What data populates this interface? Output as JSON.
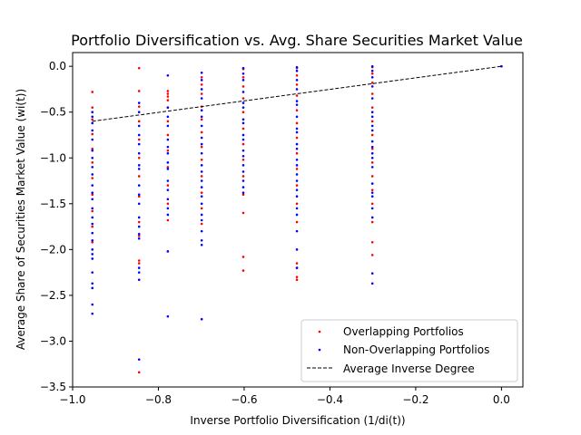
{
  "chart_data": {
    "type": "scatter",
    "title": "Portfolio Diversification vs. Avg. Share Securities Market Value",
    "xlabel": "Inverse Portfolio Diversification (1/di(t))",
    "ylabel": "Average Share of Securities Market Value (wi(t))",
    "xlim": [
      -1.0,
      0.05
    ],
    "ylim": [
      -3.5,
      0.15
    ],
    "xticks": [
      -1.0,
      -0.8,
      -0.6,
      -0.4,
      -0.2,
      0.0
    ],
    "xtick_labels": [
      "−1.0",
      "−0.8",
      "−0.6",
      "−0.4",
      "−0.2",
      "0.0"
    ],
    "yticks": [
      0.0,
      -0.5,
      -1.0,
      -1.5,
      -2.0,
      -2.5,
      -3.0,
      -3.5
    ],
    "ytick_labels": [
      "0.0",
      "−0.5",
      "−1.0",
      "−1.5",
      "−2.0",
      "−2.5",
      "−3.0",
      "−3.5"
    ],
    "grid": false,
    "legend_position": "bottom-right",
    "colors": {
      "overlapping": "#ff0000",
      "non_overlapping": "#0000ff",
      "average_line": "#000000"
    },
    "series": [
      {
        "name": "Overlapping Portfolios",
        "kind": "scatter",
        "color": "#ff0000",
        "points": [
          [
            -0.954,
            -0.28
          ],
          [
            -0.954,
            -0.45
          ],
          [
            -0.954,
            -0.58
          ],
          [
            -0.954,
            -0.74
          ],
          [
            -0.954,
            -0.9
          ],
          [
            -0.954,
            -1.05
          ],
          [
            -0.954,
            -1.22
          ],
          [
            -0.954,
            -1.4
          ],
          [
            -0.954,
            -1.58
          ],
          [
            -0.954,
            -1.75
          ],
          [
            -0.954,
            -1.92
          ],
          [
            -0.845,
            -0.02
          ],
          [
            -0.845,
            -0.27
          ],
          [
            -0.845,
            -0.44
          ],
          [
            -0.845,
            -0.6
          ],
          [
            -0.845,
            -0.8
          ],
          [
            -0.845,
            -1.0
          ],
          [
            -0.845,
            -1.2
          ],
          [
            -0.845,
            -1.42
          ],
          [
            -0.845,
            -1.7
          ],
          [
            -0.845,
            -1.85
          ],
          [
            -0.845,
            -2.12
          ],
          [
            -0.845,
            -2.15
          ],
          [
            -0.845,
            -3.34
          ],
          [
            -0.778,
            -0.27
          ],
          [
            -0.778,
            -0.3
          ],
          [
            -0.778,
            -0.33
          ],
          [
            -0.778,
            -0.37
          ],
          [
            -0.778,
            -0.45
          ],
          [
            -0.778,
            -0.6
          ],
          [
            -0.778,
            -0.75
          ],
          [
            -0.778,
            -0.92
          ],
          [
            -0.778,
            -1.1
          ],
          [
            -0.778,
            -1.3
          ],
          [
            -0.778,
            -1.5
          ],
          [
            -0.778,
            -1.68
          ],
          [
            -0.778,
            -2.02
          ],
          [
            -0.699,
            -0.12
          ],
          [
            -0.699,
            -0.2
          ],
          [
            -0.699,
            -0.3
          ],
          [
            -0.699,
            -0.44
          ],
          [
            -0.699,
            -0.58
          ],
          [
            -0.699,
            -0.72
          ],
          [
            -0.699,
            -0.88
          ],
          [
            -0.699,
            -1.02
          ],
          [
            -0.699,
            -1.2
          ],
          [
            -0.699,
            -1.38
          ],
          [
            -0.699,
            -1.55
          ],
          [
            -0.699,
            -1.72
          ],
          [
            -0.602,
            -0.03
          ],
          [
            -0.602,
            -0.12
          ],
          [
            -0.602,
            -0.22
          ],
          [
            -0.602,
            -0.35
          ],
          [
            -0.602,
            -0.5
          ],
          [
            -0.602,
            -0.68
          ],
          [
            -0.602,
            -0.85
          ],
          [
            -0.602,
            -1.02
          ],
          [
            -0.602,
            -1.2
          ],
          [
            -0.602,
            -1.4
          ],
          [
            -0.602,
            -1.6
          ],
          [
            -0.602,
            -2.08
          ],
          [
            -0.602,
            -2.23
          ],
          [
            -0.477,
            -0.02
          ],
          [
            -0.477,
            -0.1
          ],
          [
            -0.477,
            -0.2
          ],
          [
            -0.477,
            -0.32
          ],
          [
            -0.477,
            -0.48
          ],
          [
            -0.477,
            -0.62
          ],
          [
            -0.477,
            -0.78
          ],
          [
            -0.477,
            -0.95
          ],
          [
            -0.477,
            -1.12
          ],
          [
            -0.477,
            -1.3
          ],
          [
            -0.477,
            -1.5
          ],
          [
            -0.477,
            -1.7
          ],
          [
            -0.477,
            -2.15
          ],
          [
            -0.477,
            -2.2
          ],
          [
            -0.477,
            -2.3
          ],
          [
            -0.477,
            -2.33
          ],
          [
            -0.301,
            -0.01
          ],
          [
            -0.301,
            -0.08
          ],
          [
            -0.301,
            -0.18
          ],
          [
            -0.301,
            -0.3
          ],
          [
            -0.301,
            -0.45
          ],
          [
            -0.301,
            -0.6
          ],
          [
            -0.301,
            -0.75
          ],
          [
            -0.301,
            -0.9
          ],
          [
            -0.301,
            -1.05
          ],
          [
            -0.301,
            -1.2
          ],
          [
            -0.301,
            -1.35
          ],
          [
            -0.301,
            -1.5
          ],
          [
            -0.301,
            -1.7
          ],
          [
            -0.301,
            -1.92
          ],
          [
            -0.301,
            -2.06
          ],
          [
            0.0,
            0.0
          ]
        ]
      },
      {
        "name": "Non-Overlapping Portfolios",
        "kind": "scatter",
        "color": "#0000ff",
        "points": [
          [
            -0.954,
            -0.5
          ],
          [
            -0.954,
            -0.55
          ],
          [
            -0.954,
            -0.62
          ],
          [
            -0.954,
            -0.7
          ],
          [
            -0.954,
            -0.8
          ],
          [
            -0.954,
            -0.92
          ],
          [
            -0.954,
            -1.0
          ],
          [
            -0.954,
            -1.1
          ],
          [
            -0.954,
            -1.18
          ],
          [
            -0.954,
            -1.3
          ],
          [
            -0.954,
            -1.38
          ],
          [
            -0.954,
            -1.45
          ],
          [
            -0.954,
            -1.55
          ],
          [
            -0.954,
            -1.65
          ],
          [
            -0.954,
            -1.72
          ],
          [
            -0.954,
            -1.82
          ],
          [
            -0.954,
            -1.9
          ],
          [
            -0.954,
            -2.0
          ],
          [
            -0.954,
            -2.05
          ],
          [
            -0.954,
            -2.1
          ],
          [
            -0.954,
            -2.25
          ],
          [
            -0.954,
            -2.37
          ],
          [
            -0.954,
            -2.42
          ],
          [
            -0.954,
            -2.6
          ],
          [
            -0.954,
            -2.7
          ],
          [
            -0.845,
            -0.4
          ],
          [
            -0.845,
            -0.5
          ],
          [
            -0.845,
            -0.65
          ],
          [
            -0.845,
            -0.75
          ],
          [
            -0.845,
            -0.85
          ],
          [
            -0.845,
            -0.95
          ],
          [
            -0.845,
            -1.08
          ],
          [
            -0.845,
            -1.12
          ],
          [
            -0.845,
            -1.3
          ],
          [
            -0.845,
            -1.4
          ],
          [
            -0.845,
            -1.5
          ],
          [
            -0.845,
            -1.65
          ],
          [
            -0.845,
            -1.75
          ],
          [
            -0.845,
            -1.83
          ],
          [
            -0.845,
            -1.88
          ],
          [
            -0.845,
            -2.2
          ],
          [
            -0.845,
            -2.25
          ],
          [
            -0.845,
            -2.33
          ],
          [
            -0.845,
            -3.2
          ],
          [
            -0.778,
            -0.1
          ],
          [
            -0.778,
            -0.45
          ],
          [
            -0.778,
            -0.55
          ],
          [
            -0.778,
            -0.65
          ],
          [
            -0.778,
            -0.8
          ],
          [
            -0.778,
            -0.88
          ],
          [
            -0.778,
            -0.95
          ],
          [
            -0.778,
            -1.05
          ],
          [
            -0.778,
            -1.12
          ],
          [
            -0.778,
            -1.25
          ],
          [
            -0.778,
            -1.35
          ],
          [
            -0.778,
            -1.45
          ],
          [
            -0.778,
            -1.55
          ],
          [
            -0.778,
            -1.62
          ],
          [
            -0.778,
            -2.02
          ],
          [
            -0.778,
            -2.73
          ],
          [
            -0.699,
            -0.07
          ],
          [
            -0.699,
            -0.15
          ],
          [
            -0.699,
            -0.25
          ],
          [
            -0.699,
            -0.35
          ],
          [
            -0.699,
            -0.48
          ],
          [
            -0.699,
            -0.55
          ],
          [
            -0.699,
            -0.65
          ],
          [
            -0.699,
            -0.78
          ],
          [
            -0.699,
            -0.85
          ],
          [
            -0.699,
            -0.95
          ],
          [
            -0.699,
            -1.08
          ],
          [
            -0.699,
            -1.15
          ],
          [
            -0.699,
            -1.25
          ],
          [
            -0.699,
            -1.32
          ],
          [
            -0.699,
            -1.42
          ],
          [
            -0.699,
            -1.5
          ],
          [
            -0.699,
            -1.62
          ],
          [
            -0.699,
            -1.68
          ],
          [
            -0.699,
            -1.8
          ],
          [
            -0.699,
            -1.9
          ],
          [
            -0.699,
            -1.95
          ],
          [
            -0.699,
            -2.76
          ],
          [
            -0.602,
            -0.02
          ],
          [
            -0.602,
            -0.08
          ],
          [
            -0.602,
            -0.15
          ],
          [
            -0.602,
            -0.28
          ],
          [
            -0.602,
            -0.4
          ],
          [
            -0.602,
            -0.45
          ],
          [
            -0.602,
            -0.58
          ],
          [
            -0.602,
            -0.62
          ],
          [
            -0.602,
            -0.75
          ],
          [
            -0.602,
            -0.8
          ],
          [
            -0.602,
            -0.92
          ],
          [
            -0.602,
            -0.98
          ],
          [
            -0.602,
            -1.08
          ],
          [
            -0.602,
            -1.15
          ],
          [
            -0.602,
            -1.25
          ],
          [
            -0.602,
            -1.32
          ],
          [
            -0.602,
            -1.38
          ],
          [
            -0.477,
            -0.01
          ],
          [
            -0.477,
            -0.05
          ],
          [
            -0.477,
            -0.15
          ],
          [
            -0.477,
            -0.25
          ],
          [
            -0.477,
            -0.38
          ],
          [
            -0.477,
            -0.42
          ],
          [
            -0.477,
            -0.55
          ],
          [
            -0.477,
            -0.68
          ],
          [
            -0.477,
            -0.72
          ],
          [
            -0.477,
            -0.85
          ],
          [
            -0.477,
            -0.9
          ],
          [
            -0.477,
            -1.02
          ],
          [
            -0.477,
            -1.08
          ],
          [
            -0.477,
            -1.18
          ],
          [
            -0.477,
            -1.25
          ],
          [
            -0.477,
            -1.35
          ],
          [
            -0.477,
            -1.42
          ],
          [
            -0.477,
            -1.55
          ],
          [
            -0.477,
            -1.62
          ],
          [
            -0.477,
            -1.8
          ],
          [
            -0.477,
            -2.0
          ],
          [
            -0.477,
            -2.2
          ],
          [
            -0.301,
            0.0
          ],
          [
            -0.301,
            -0.05
          ],
          [
            -0.301,
            -0.12
          ],
          [
            -0.301,
            -0.22
          ],
          [
            -0.301,
            -0.35
          ],
          [
            -0.301,
            -0.5
          ],
          [
            -0.301,
            -0.55
          ],
          [
            -0.301,
            -0.65
          ],
          [
            -0.301,
            -0.7
          ],
          [
            -0.301,
            -0.82
          ],
          [
            -0.301,
            -0.88
          ],
          [
            -0.301,
            -0.95
          ],
          [
            -0.301,
            -1.0
          ],
          [
            -0.301,
            -1.1
          ],
          [
            -0.301,
            -1.28
          ],
          [
            -0.301,
            -1.38
          ],
          [
            -0.301,
            -1.42
          ],
          [
            -0.301,
            -1.55
          ],
          [
            -0.301,
            -1.65
          ],
          [
            -0.301,
            -2.26
          ],
          [
            -0.301,
            -2.37
          ],
          [
            0.0,
            0.0
          ]
        ]
      },
      {
        "name": "Average Inverse Degree",
        "kind": "line",
        "style": "dashed",
        "color": "#000000",
        "points": [
          [
            -0.954,
            -0.6
          ],
          [
            0.0,
            0.0
          ]
        ]
      }
    ]
  }
}
